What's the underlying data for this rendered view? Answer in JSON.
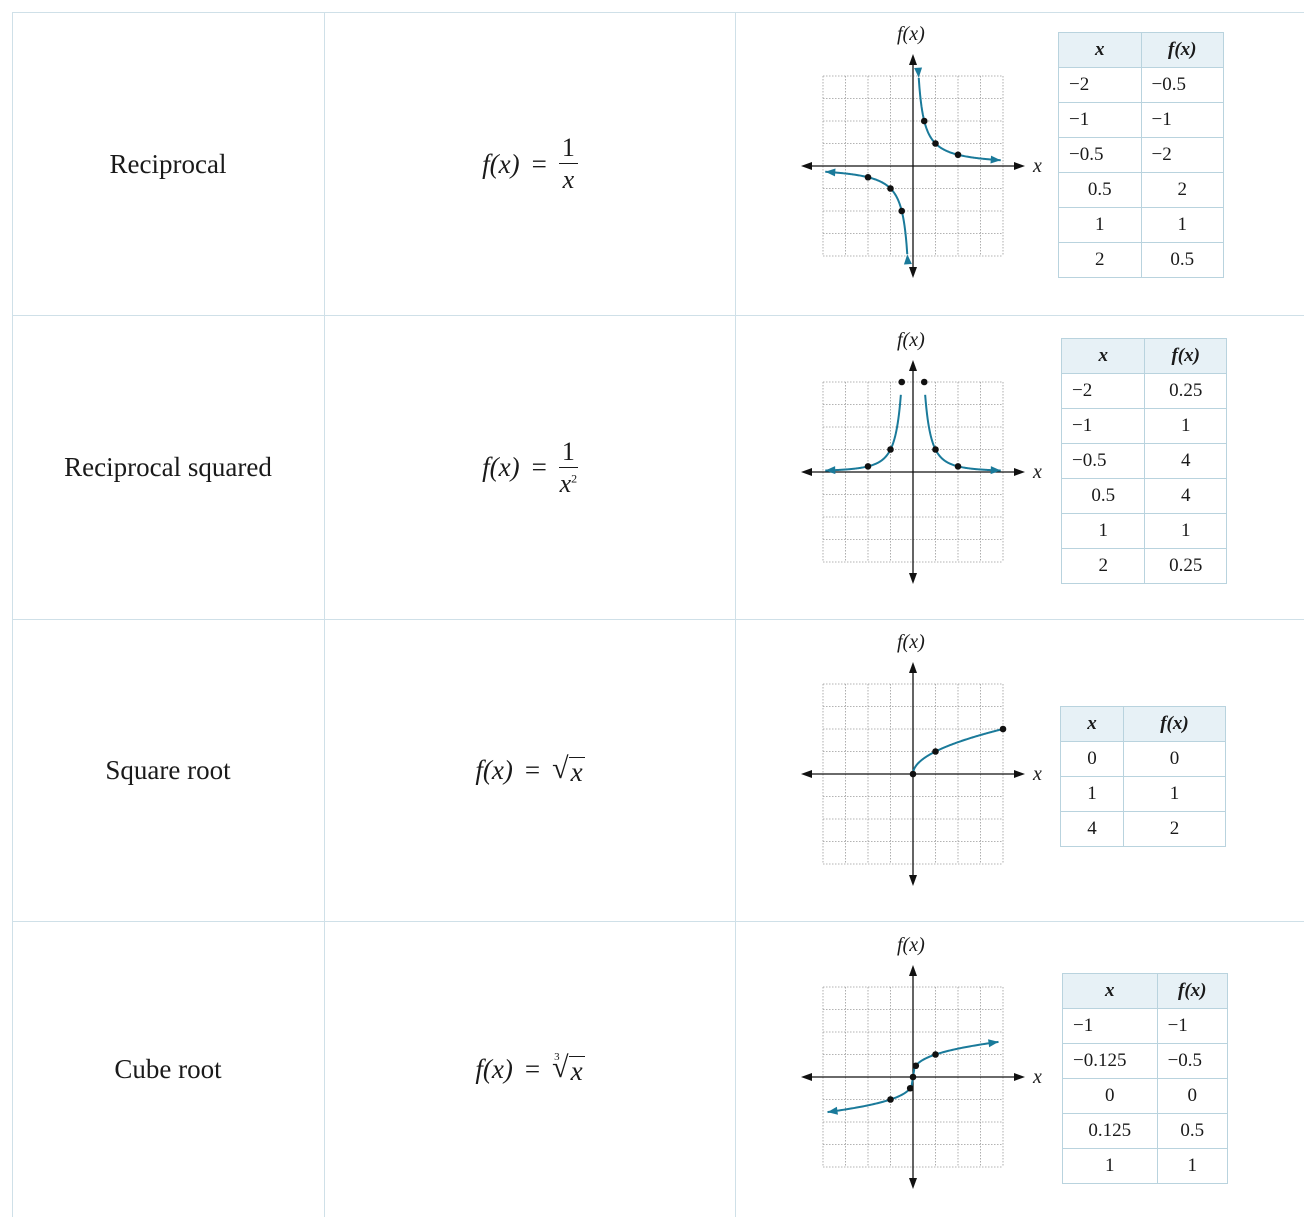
{
  "rows": [
    {
      "name": "Reciprocal",
      "formula": {
        "lhs": "f(x)",
        "eq": "=",
        "numerator": "1",
        "denominator": "x",
        "exponent": ""
      },
      "graph": {
        "ylabel": "f(x)",
        "xlabel": "x"
      },
      "table": {
        "headers": [
          "x",
          "f(x)"
        ],
        "rows": [
          [
            "−2",
            "−0.5"
          ],
          [
            "−1",
            "−1"
          ],
          [
            "−0.5",
            "−2"
          ],
          [
            "0.5",
            "2"
          ],
          [
            "1",
            "1"
          ],
          [
            "2",
            "0.5"
          ]
        ]
      }
    },
    {
      "name": "Reciprocal squared",
      "formula": {
        "lhs": "f(x)",
        "eq": "=",
        "numerator": "1",
        "denominator": "x",
        "exponent": "2"
      },
      "graph": {
        "ylabel": "f(x)",
        "xlabel": "x"
      },
      "table": {
        "headers": [
          "x",
          "f(x)"
        ],
        "rows": [
          [
            "−2",
            "0.25"
          ],
          [
            "−1",
            "1"
          ],
          [
            "−0.5",
            "4"
          ],
          [
            "0.5",
            "4"
          ],
          [
            "1",
            "1"
          ],
          [
            "2",
            "0.25"
          ]
        ]
      }
    },
    {
      "name": "Square root",
      "formula": {
        "lhs": "f(x)",
        "eq": "=",
        "radical": "√",
        "radicand": "x",
        "index": ""
      },
      "graph": {
        "ylabel": "f(x)",
        "xlabel": "x"
      },
      "table": {
        "headers": [
          "x",
          "f(x)"
        ],
        "rows": [
          [
            "0",
            "0"
          ],
          [
            "1",
            "1"
          ],
          [
            "4",
            "2"
          ]
        ]
      }
    },
    {
      "name": "Cube root",
      "formula": {
        "lhs": "f(x)",
        "eq": "=",
        "radical": "√",
        "radicand": "x",
        "index": "3"
      },
      "graph": {
        "ylabel": "f(x)",
        "xlabel": "x"
      },
      "table": {
        "headers": [
          "x",
          "f(x)"
        ],
        "rows": [
          [
            "−1",
            "−1"
          ],
          [
            "−0.125",
            "−0.5"
          ],
          [
            "0",
            "0"
          ],
          [
            "0.125",
            "0.5"
          ],
          [
            "1",
            "1"
          ]
        ]
      }
    }
  ],
  "colors": {
    "curve": "#1a7a9a",
    "grid": "#9a9a9a",
    "border": "#cfe0e8",
    "header_bg": "#e7f1f6"
  }
}
